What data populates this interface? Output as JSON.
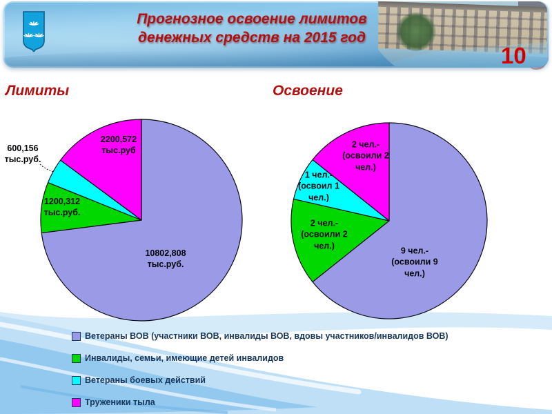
{
  "slide": {
    "page_number": "10",
    "title_line1": "Прогнозное освоение лимитов",
    "title_line2": "денежных средств на 2015 год"
  },
  "header": {
    "logo_icon": "lotus-coat-of-arms-icon",
    "photo": "administration-building-photo"
  },
  "colors": {
    "accent_red": "#B01111",
    "legend_text": "#17365D",
    "purple": "#9A9AE6",
    "green": "#00D800",
    "cyan": "#00FFFF",
    "magenta": "#FF00FF"
  },
  "chart_data": [
    {
      "type": "pie",
      "title": "Лимиты",
      "unit": "тыс.руб.",
      "legend_position": "bottom",
      "slices": [
        {
          "category": "Ветераны ВОВ (участники ВОВ, инвалиды ВОВ, вдовы участников/инвалидов ВОВ)",
          "value": 10802.808,
          "label": "10802,808\nтыс.руб.",
          "color": "#9A9AE6"
        },
        {
          "category": "Инвалиды, семьи, имеющие детей инвалидов",
          "value": 1200.312,
          "label": "1200,312\nтыс.руб.",
          "color": "#00D800"
        },
        {
          "category": "Ветераны боевых действий",
          "value": 600.156,
          "label": "600,156\nтыс.руб.",
          "color": "#00FFFF",
          "label_outside": true
        },
        {
          "category": "Труженики тыла",
          "value": 2200.572,
          "label": "2200,572\nтыс.руб",
          "color": "#FF00FF"
        }
      ]
    },
    {
      "type": "pie",
      "title": "Освоение",
      "unit": "чел.",
      "legend_position": "bottom",
      "slices": [
        {
          "category": "Ветераны ВОВ (участники ВОВ, инвалиды ВОВ, вдовы участников/инвалидов ВОВ)",
          "value": 9,
          "label": "9 чел.-\n(освоили 9\nчел.)",
          "color": "#9A9AE6"
        },
        {
          "category": "Инвалиды, семьи, имеющие детей инвалидов",
          "value": 2,
          "label": "2 чел.-\n(освоили 2\nчел.)",
          "color": "#00D800"
        },
        {
          "category": "Ветераны боевых действий",
          "value": 1,
          "label": "1 чел.-\n(освоил 1\nчел.)",
          "color": "#00FFFF"
        },
        {
          "category": "Труженики тыла",
          "value": 2,
          "label": "2 чел.-\n(освоили 2\nчел.)",
          "color": "#FF00FF"
        }
      ]
    }
  ],
  "legend": {
    "items": [
      {
        "label": "Ветераны ВОВ (участники ВОВ, инвалиды ВОВ, вдовы участников/инвалидов ВОВ)",
        "color": "#9A9AE6"
      },
      {
        "label": "Инвалиды, семьи, имеющие детей инвалидов",
        "color": "#00D800"
      },
      {
        "label": "Ветераны боевых действий",
        "color": "#00FFFF"
      },
      {
        "label": "Труженики тыла",
        "color": "#FF00FF"
      }
    ]
  }
}
